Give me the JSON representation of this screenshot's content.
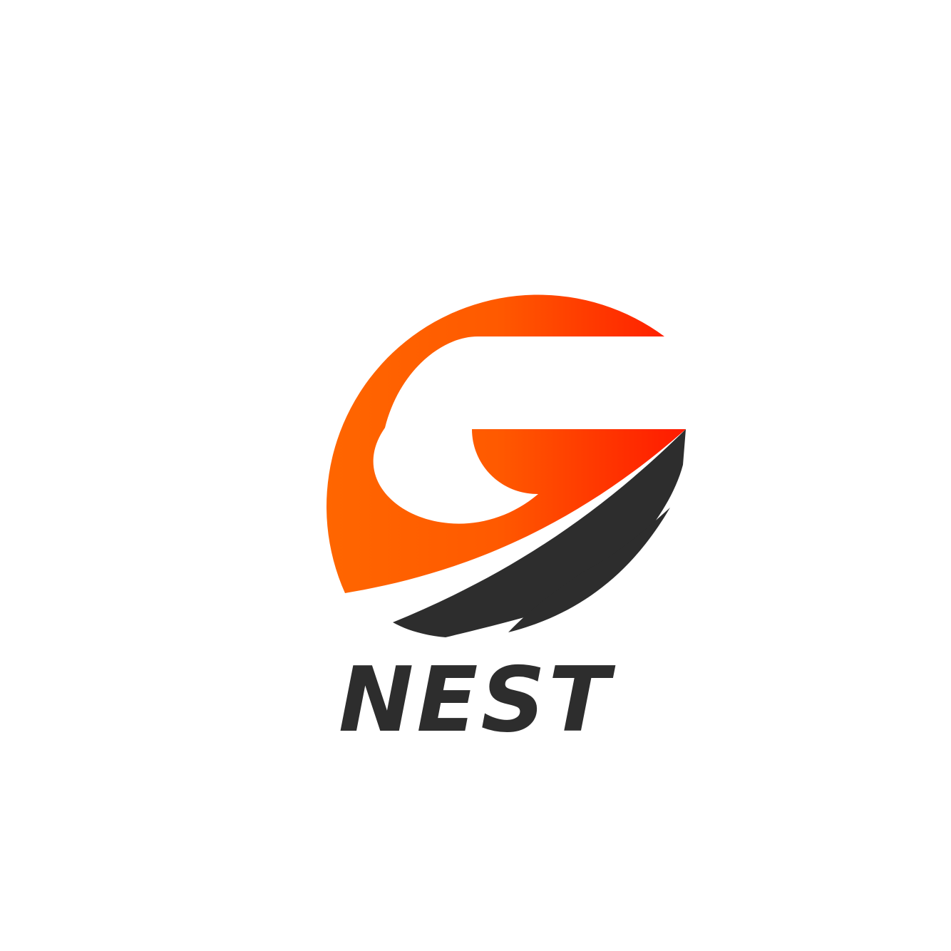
{
  "logo": {
    "name": "NEST",
    "colors": {
      "gradient_start": "#ff6a00",
      "gradient_end": "#ff1a00",
      "dark": "#2d2d2d",
      "background": "#ffffff"
    }
  }
}
